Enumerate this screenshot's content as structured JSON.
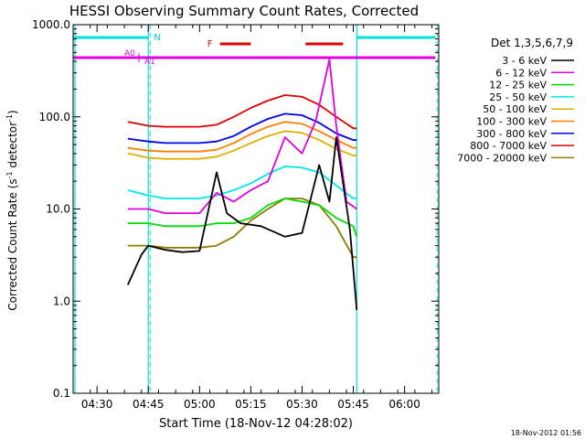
{
  "chart_data": {
    "type": "line",
    "title": "HESSI Observing Summary Count Rates, Corrected",
    "xlabel": "Start Time (18-Nov-12 04:28:02)",
    "ylabel_main": "Corrected Count Rate (s",
    "ylabel_sup1": "-1",
    "ylabel_mid": " detector",
    "ylabel_sup2": "-1",
    "ylabel_end": ")",
    "timestamp": "18-Nov-2012 01:56",
    "y_scale": "log",
    "ylim": [
      0.1,
      1000
    ],
    "y_ticks": [
      {
        "value": 0.1,
        "label": "0.1"
      },
      {
        "value": 1,
        "label": "1.0"
      },
      {
        "value": 10,
        "label": "10.0"
      },
      {
        "value": 100,
        "label": "100.0"
      },
      {
        "value": 1000,
        "label": "1000.0"
      }
    ],
    "xlim": [
      "04:23",
      "06:10"
    ],
    "x_ticks": [
      "04:30",
      "04:45",
      "05:00",
      "05:15",
      "05:30",
      "05:45",
      "06:00"
    ],
    "legend_title": "Det 1,3,5,6,7,9",
    "legend_position": "right",
    "series": [
      {
        "name": "3 - 6 keV",
        "color": "#000000",
        "x": [
          "04:39",
          "04:43",
          "04:45",
          "04:50",
          "04:55",
          "05:00",
          "05:05",
          "05:08",
          "05:12",
          "05:18",
          "05:25",
          "05:30",
          "05:35",
          "05:38",
          "05:40",
          "05:44",
          "05:46"
        ],
        "values": [
          1.5,
          3.2,
          4.0,
          3.6,
          3.4,
          3.5,
          25,
          9,
          7,
          6.5,
          5,
          5.5,
          30,
          12,
          60,
          6,
          0.8
        ]
      },
      {
        "name": "6 - 12 keV",
        "color": "#e000e0",
        "x": [
          "04:39",
          "04:45",
          "04:50",
          "04:55",
          "05:00",
          "05:05",
          "05:10",
          "05:15",
          "05:20",
          "05:25",
          "05:30",
          "05:34",
          "05:38",
          "05:40",
          "05:43",
          "05:46"
        ],
        "values": [
          10,
          10,
          9,
          9,
          9,
          15,
          12,
          16,
          20,
          60,
          40,
          90,
          420,
          80,
          12,
          10
        ]
      },
      {
        "name": "12 - 25 keV",
        "color": "#00dd00",
        "x": [
          "04:39",
          "04:45",
          "04:50",
          "04:55",
          "05:00",
          "05:05",
          "05:10",
          "05:15",
          "05:20",
          "05:25",
          "05:30",
          "05:35",
          "05:40",
          "05:45",
          "05:46"
        ],
        "values": [
          7,
          7,
          6.5,
          6.5,
          6.5,
          7,
          7,
          8,
          11,
          13,
          12,
          11,
          8,
          6.5,
          5
        ]
      },
      {
        "name": "25 - 50 keV",
        "color": "#00e8e8",
        "x": [
          "04:39",
          "04:45",
          "04:50",
          "04:55",
          "05:00",
          "05:05",
          "05:10",
          "05:15",
          "05:20",
          "05:25",
          "05:30",
          "05:35",
          "05:40",
          "05:45",
          "05:46"
        ],
        "values": [
          16,
          14,
          13,
          13,
          13,
          14,
          16,
          19,
          24,
          29,
          28,
          25,
          18,
          13,
          13
        ]
      },
      {
        "name": "50 - 100 keV",
        "color": "#e0b000",
        "x": [
          "04:39",
          "04:45",
          "04:50",
          "04:55",
          "05:00",
          "05:05",
          "05:10",
          "05:15",
          "05:20",
          "05:25",
          "05:30",
          "05:35",
          "05:40",
          "05:45",
          "05:46"
        ],
        "values": [
          40,
          36,
          35,
          35,
          35,
          37,
          43,
          52,
          62,
          70,
          67,
          56,
          45,
          38,
          38
        ]
      },
      {
        "name": "100 - 300 keV",
        "color": "#ff8000",
        "x": [
          "04:39",
          "04:45",
          "04:50",
          "04:55",
          "05:00",
          "05:05",
          "05:10",
          "05:15",
          "05:20",
          "05:25",
          "05:30",
          "05:35",
          "05:40",
          "05:45",
          "05:46"
        ],
        "values": [
          46,
          43,
          42,
          42,
          42,
          44,
          52,
          65,
          78,
          88,
          84,
          70,
          56,
          46,
          46
        ]
      },
      {
        "name": "300 - 800 keV",
        "color": "#0000ee",
        "x": [
          "04:39",
          "04:45",
          "04:50",
          "04:55",
          "05:00",
          "05:05",
          "05:10",
          "05:15",
          "05:20",
          "05:25",
          "05:30",
          "05:35",
          "05:40",
          "05:45",
          "05:46"
        ],
        "values": [
          58,
          54,
          52,
          52,
          52,
          54,
          62,
          78,
          95,
          108,
          104,
          86,
          66,
          56,
          56
        ]
      },
      {
        "name": "800 - 7000 keV",
        "color": "#dd0000",
        "x": [
          "04:39",
          "04:45",
          "04:50",
          "04:55",
          "05:00",
          "05:05",
          "05:10",
          "05:15",
          "05:20",
          "05:25",
          "05:30",
          "05:35",
          "05:40",
          "05:45",
          "05:46"
        ],
        "values": [
          88,
          80,
          78,
          78,
          78,
          82,
          100,
          125,
          150,
          172,
          165,
          135,
          100,
          75,
          75
        ]
      },
      {
        "name": "7000 - 20000 keV",
        "color": "#8b7d00",
        "x": [
          "04:39",
          "04:45",
          "04:50",
          "04:55",
          "05:00",
          "05:05",
          "05:10",
          "05:15",
          "05:20",
          "05:25",
          "05:30",
          "05:35",
          "05:40",
          "05:45",
          "05:46"
        ],
        "values": [
          4,
          4,
          3.8,
          3.8,
          3.8,
          4,
          5,
          7.5,
          10,
          13,
          13,
          11,
          6.5,
          3,
          3
        ]
      }
    ],
    "annotations": {
      "n_label": "N",
      "f_label": "F",
      "a0_label": "A0",
      "a1_label": "A1",
      "night_bars": [
        [
          "04:23",
          "04:45"
        ],
        [
          "05:46",
          "06:09"
        ]
      ],
      "flare_bars": [
        [
          "05:06",
          "05:15"
        ],
        [
          "05:31",
          "05:42"
        ]
      ],
      "attenuator_bar": [
        "04:23",
        "06:09"
      ]
    }
  }
}
